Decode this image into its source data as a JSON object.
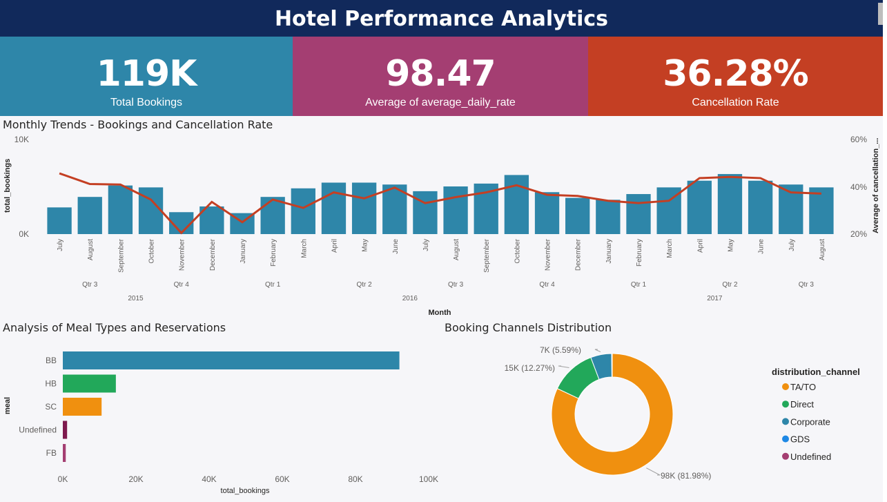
{
  "header": {
    "title": "Hotel Performance Analytics"
  },
  "kpis": [
    {
      "value": "119K",
      "label": "Total Bookings",
      "color": "#2e86a9"
    },
    {
      "value": "98.47",
      "label": "Average of average_daily_rate",
      "color": "#a43e72"
    },
    {
      "value": "36.28%",
      "label": "Cancellation Rate",
      "color": "#c43f23"
    }
  ],
  "monthly": {
    "title": "Monthly Trends - Bookings and Cancellation Rate",
    "xlabel": "Month",
    "ylabel_left": "total_bookings",
    "ylabel_right": "Average of cancellation_...",
    "left_ticks": [
      "10K",
      "0K"
    ],
    "right_ticks": [
      "60%",
      "40%",
      "20%"
    ]
  },
  "meal": {
    "title": "Analysis of Meal Types and Reservations",
    "xlabel": "total_bookings",
    "ylabel": "meal",
    "ticks": [
      "0K",
      "20K",
      "40K",
      "60K",
      "80K",
      "100K"
    ]
  },
  "channels": {
    "title": "Booking Channels Distribution",
    "legend_title": "distribution_channel"
  },
  "chart_data": [
    {
      "type": "bar+line",
      "title": "Monthly Trends - Bookings and Cancellation Rate",
      "xlabel": "Month",
      "ylabel": "total_bookings",
      "y2label": "Average of cancellation_...",
      "categories": [
        "July",
        "August",
        "September",
        "October",
        "November",
        "December",
        "January",
        "February",
        "March",
        "April",
        "May",
        "June",
        "July",
        "August",
        "September",
        "October",
        "November",
        "December",
        "January",
        "February",
        "March",
        "April",
        "May",
        "June",
        "July",
        "August"
      ],
      "quarters": [
        {
          "label": "Qtr 3",
          "start": 0,
          "end": 2
        },
        {
          "label": "Qtr 4",
          "start": 3,
          "end": 5
        },
        {
          "label": "Qtr 1",
          "start": 6,
          "end": 8
        },
        {
          "label": "Qtr 2",
          "start": 9,
          "end": 11
        },
        {
          "label": "Qtr 3",
          "start": 12,
          "end": 14
        },
        {
          "label": "Qtr 4",
          "start": 15,
          "end": 17
        },
        {
          "label": "Qtr 1",
          "start": 18,
          "end": 20
        },
        {
          "label": "Qtr 2",
          "start": 21,
          "end": 23
        },
        {
          "label": "Qtr 3",
          "start": 24,
          "end": 25
        }
      ],
      "years": [
        {
          "label": "2015",
          "start": 0,
          "end": 5
        },
        {
          "label": "2016",
          "start": 6,
          "end": 17
        },
        {
          "label": "2017",
          "start": 18,
          "end": 25
        }
      ],
      "series": [
        {
          "name": "total_bookings",
          "kind": "bar",
          "color": "#2e86a9",
          "values": [
            2800,
            3900,
            5100,
            4900,
            2300,
            2900,
            2200,
            3900,
            4800,
            5400,
            5400,
            5200,
            4500,
            5000,
            5300,
            6200,
            4400,
            3800,
            3600,
            4200,
            4900,
            5600,
            6300,
            5600,
            5200,
            4900
          ]
        },
        {
          "name": "Average of cancellation_rate",
          "kind": "line",
          "color": "#c43f23",
          "values": [
            45.5,
            41,
            40.8,
            34.5,
            20.5,
            33.5,
            25,
            34.5,
            31,
            37.5,
            35,
            39.5,
            33,
            35.5,
            37.5,
            40.5,
            36.5,
            36,
            34,
            33,
            34,
            43.5,
            44,
            43.5,
            37.5,
            37
          ]
        }
      ],
      "ylim": [
        0,
        10000
      ],
      "y2lim": [
        20,
        60
      ]
    },
    {
      "type": "bar",
      "orientation": "horizontal",
      "title": "Analysis of Meal Types and Reservations",
      "xlabel": "total_bookings",
      "ylabel": "meal",
      "categories": [
        "BB",
        "HB",
        "SC",
        "Undefined",
        "FB"
      ],
      "values": [
        92000,
        14500,
        10600,
        1170,
        800
      ],
      "colors": [
        "#2e86a9",
        "#22a85a",
        "#f0900f",
        "#7e1a4e",
        "#a43e72"
      ],
      "xlim": [
        0,
        100000
      ]
    },
    {
      "type": "pie",
      "title": "Booking Channels Distribution",
      "legend_title": "distribution_channel",
      "categories": [
        "TA/TO",
        "Direct",
        "Corporate",
        "GDS",
        "Undefined"
      ],
      "values": [
        81.98,
        12.27,
        5.59,
        0.16,
        0.0
      ],
      "colors": [
        "#f0900f",
        "#22a85a",
        "#2e86a9",
        "#1e88e5",
        "#a43e72"
      ],
      "labels": [
        "98K (81.98%)",
        "15K (12.27%)",
        "7K (5.59%)",
        "",
        ""
      ]
    }
  ]
}
